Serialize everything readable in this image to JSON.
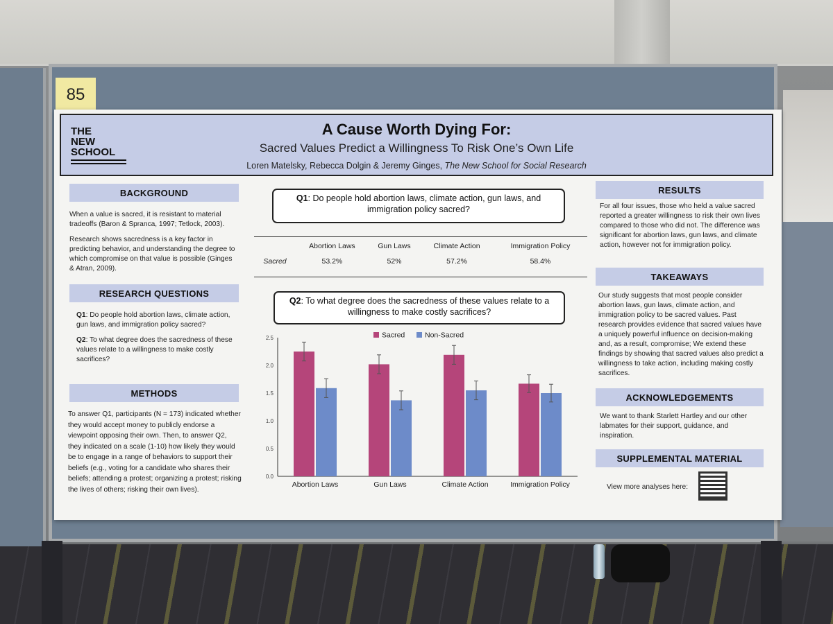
{
  "booth_number": "85",
  "poster": {
    "logo_lines": [
      "THE",
      "NEW",
      "SCHOOL"
    ],
    "title": "A Cause Worth Dying For:",
    "subtitle": "Sacred Values Predict a Willingness To Risk One’s Own Life",
    "authors": "Loren Matelsky, Rebecca Dolgin & Jeremy Ginges,",
    "affiliation": "The New School for Social Research"
  },
  "left": {
    "background_head": "BACKGROUND",
    "background_p1": "When a value is sacred, it is resistant to material tradeoffs (Baron & Spranca, 1997; Tetlock, 2003).",
    "background_p2": "Research shows sacredness is a key factor in predicting behavior, and understanding the degree to which compromise on that value is possible (Ginges & Atran, 2009).",
    "rq_head": "RESEARCH QUESTIONS",
    "rq_q1_label": "Q1",
    "rq_q1": ": Do people hold abortion laws, climate action, gun laws, and immigration policy sacred?",
    "rq_q2_label": "Q2",
    "rq_q2": ": To what degree does the sacredness of these values relate to a willingness to make costly sacrifices?",
    "methods_head": "METHODS",
    "methods_text": "To answer Q1, participants (N = 173) indicated whether they would accept money to publicly endorse a viewpoint opposing their own. Then, to answer Q2, they indicated on a scale (1-10) how likely they would be to engage in a range of behaviors to support their beliefs (e.g., voting for a candidate who shares their beliefs; attending a protest; organizing a protest; risking the lives of others; risking their own lives)."
  },
  "center": {
    "q1_label": "Q1",
    "q1_text": ": Do people hold abortion laws, climate action, gun laws, and immigration policy sacred?",
    "table_headers": [
      "Abortion Laws",
      "Gun Laws",
      "Climate Action",
      "Immigration Policy"
    ],
    "table_row_label": "Sacred",
    "table_values": [
      "53.2%",
      "52%",
      "57.2%",
      "58.4%"
    ],
    "q2_label": "Q2",
    "q2_text": ": To what degree does the sacredness of these values relate to a willingness to make costly sacrifices?"
  },
  "chart_data": {
    "type": "bar",
    "categories": [
      "Abortion Laws",
      "Gun Laws",
      "Climate Action",
      "Immigration Policy"
    ],
    "series": [
      {
        "name": "Sacred",
        "values": [
          2.25,
          2.02,
          2.19,
          1.67
        ],
        "errors": [
          0.17,
          0.17,
          0.17,
          0.16
        ],
        "color": "#b5457a"
      },
      {
        "name": "Non-Sacred",
        "values": [
          1.59,
          1.37,
          1.55,
          1.5
        ],
        "errors": [
          0.17,
          0.17,
          0.17,
          0.16
        ],
        "color": "#6d8bc9"
      }
    ],
    "yticks": [
      "0.0",
      "0.5",
      "1.0",
      "1.5",
      "2.0",
      "2.5"
    ],
    "ylim": [
      0,
      2.5
    ],
    "legend_position": "top-center"
  },
  "right": {
    "results_head": "RESULTS",
    "results_text": "For all four issues, those who held a value sacred reported a greater willingness to risk their own lives compared to those who did not. The difference was significant for abortion laws, gun laws, and climate action, however not for immigration policy.",
    "takeaways_head": "TAKEAWAYS",
    "takeaways_text": "Our study suggests that most people consider abortion laws, gun laws, climate action, and immigration policy to be sacred values. Past research provides evidence that sacred values have a uniquely powerful influence on decision-making and, as a result, compromise; We extend these findings by showing that sacred values also predict a willingness to take action, including making costly sacrifices.",
    "ack_head": "ACKNOWLEDGEMENTS",
    "ack_text": "We want to thank Starlett Hartley and our other labmates for their support, guidance, and inspiration.",
    "supp_head": "SUPPLEMENTAL MATERIAL",
    "supp_text": "View more analyses here:"
  },
  "colors": {
    "section_header": "#c5cce6",
    "sacred": "#b5457a",
    "non_sacred": "#6d8bc9"
  }
}
